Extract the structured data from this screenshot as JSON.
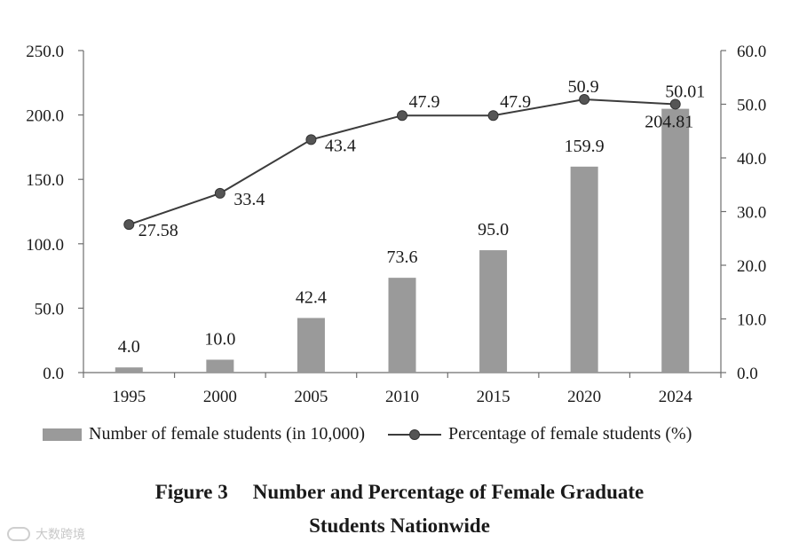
{
  "chart_data": {
    "type": "bar+line",
    "categories": [
      "1995",
      "2000",
      "2005",
      "2010",
      "2015",
      "2020",
      "2024"
    ],
    "series": [
      {
        "name": "Number of female students (in 10,000)",
        "type": "bar",
        "axis": "left",
        "values": [
          4.0,
          10.0,
          42.4,
          73.6,
          95.0,
          159.9,
          204.81
        ],
        "labels": [
          "4.0",
          "10.0",
          "42.4",
          "73.6",
          "95.0",
          "159.9",
          "204.81"
        ],
        "color": "#9a9a9a"
      },
      {
        "name": "Percentage of female students (%)",
        "type": "line",
        "axis": "right",
        "values": [
          27.58,
          33.4,
          43.4,
          47.9,
          47.9,
          50.9,
          50.01
        ],
        "labels": [
          "27.58",
          "33.4",
          "43.4",
          "47.9",
          "47.9",
          "50.9",
          "50.01"
        ],
        "color": "#3c3c3c"
      }
    ],
    "y_left": {
      "min": 0,
      "max": 250,
      "ticks": [
        "0.0",
        "50.0",
        "100.0",
        "150.0",
        "200.0",
        "250.0"
      ]
    },
    "y_right": {
      "min": 0,
      "max": 60,
      "ticks": [
        "0.0",
        "10.0",
        "20.0",
        "30.0",
        "40.0",
        "50.0",
        "60.0"
      ]
    },
    "grid": false,
    "legend_position": "bottom"
  },
  "caption": {
    "figure_number": "Figure 3",
    "title_line1": "Number and Percentage of Female Graduate",
    "title_line2": "Students Nationwide"
  },
  "watermark": {
    "text": "大数跨境"
  }
}
